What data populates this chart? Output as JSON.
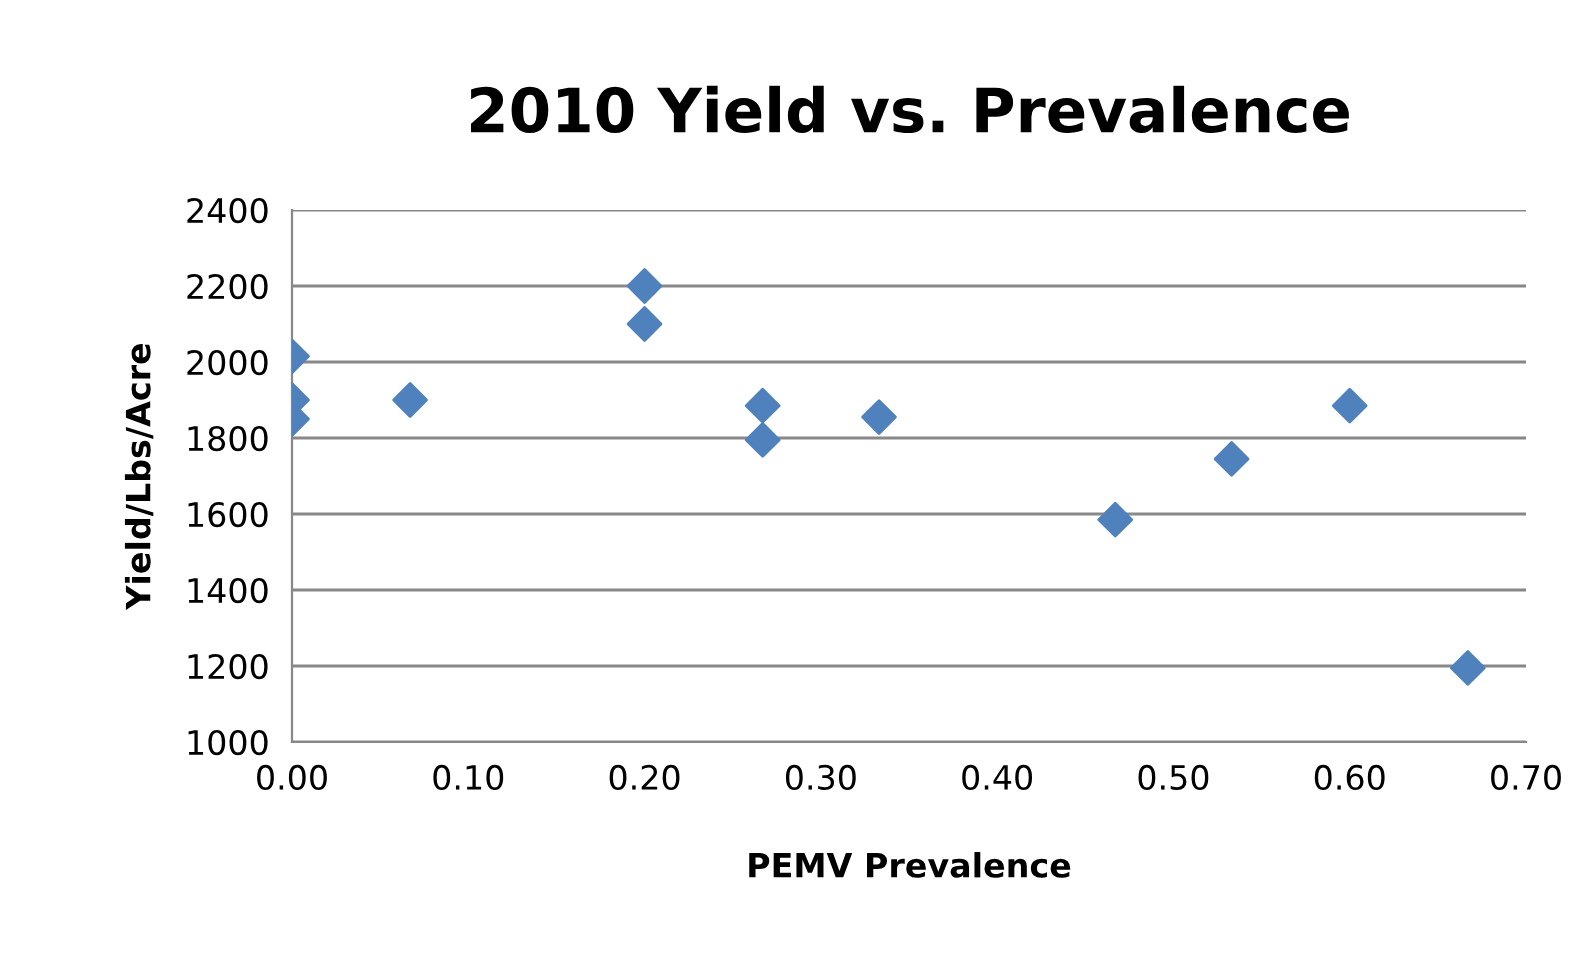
{
  "chart_data": {
    "type": "scatter",
    "title": "2010 Yield vs. Prevalence",
    "xlabel": "PEMV Prevalence",
    "ylabel": "Yield/Lbs/Acre",
    "x": [
      0.0,
      0.0,
      0.0,
      0.067,
      0.2,
      0.2,
      0.267,
      0.267,
      0.333,
      0.467,
      0.533,
      0.6,
      0.667
    ],
    "series": [
      {
        "color": "#4f81bd",
        "values": [
          2015,
          1900,
          1850,
          1900,
          2200,
          2100,
          1885,
          1795,
          1855,
          1585,
          1745,
          1885,
          1195
        ]
      }
    ],
    "xlim": [
      0,
      0.7
    ],
    "xticks": [
      {
        "value": 0,
        "label": "0.00"
      },
      {
        "value": 0.1,
        "label": "0.10"
      },
      {
        "value": 0.2,
        "label": "0.20"
      },
      {
        "value": 0.3,
        "label": "0.30"
      },
      {
        "value": 0.4,
        "label": "0.40"
      },
      {
        "value": 0.5,
        "label": "0.50"
      },
      {
        "value": 0.6,
        "label": "0.60"
      },
      {
        "value": 0.7,
        "label": "0.70"
      }
    ],
    "ylim": [
      1000,
      2400
    ],
    "yticks": [
      1000,
      1200,
      1400,
      1600,
      1800,
      2000,
      2200,
      2400
    ],
    "grid": "y",
    "marker": "diamond",
    "legend": false
  }
}
